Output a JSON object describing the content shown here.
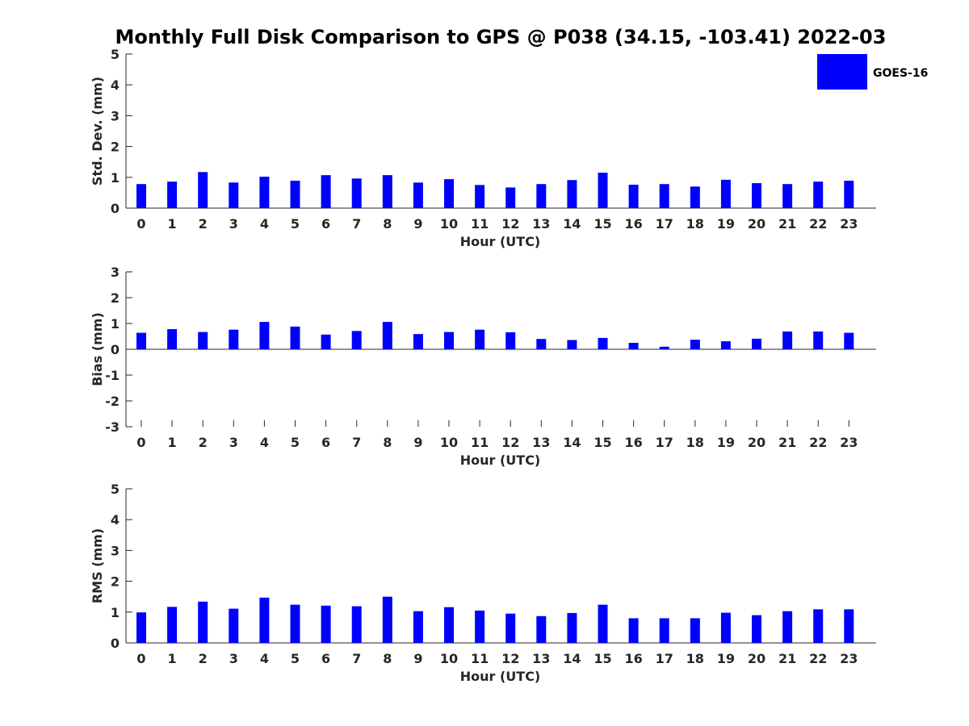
{
  "title": "Monthly Full Disk Comparison to GPS @ P038 (34.15, -103.41) 2022-03",
  "legend": {
    "label": "GOES-16",
    "color": "#0000ff"
  },
  "chart_data": [
    {
      "type": "bar",
      "xlabel": "Hour (UTC)",
      "ylabel": "Std. Dev. (mm)",
      "ylim": [
        0,
        5
      ],
      "yticks": [
        "0",
        "1",
        "2",
        "3",
        "4",
        "5"
      ],
      "categories": [
        "0",
        "1",
        "2",
        "3",
        "4",
        "5",
        "6",
        "7",
        "8",
        "9",
        "10",
        "11",
        "12",
        "13",
        "14",
        "15",
        "16",
        "17",
        "18",
        "19",
        "20",
        "21",
        "22",
        "23"
      ],
      "series": [
        {
          "name": "GOES-16",
          "color": "#0000ff",
          "values": [
            0.78,
            0.86,
            1.17,
            0.83,
            1.02,
            0.89,
            1.07,
            0.96,
            1.07,
            0.83,
            0.94,
            0.75,
            0.67,
            0.78,
            0.91,
            1.15,
            0.76,
            0.78,
            0.7,
            0.92,
            0.81,
            0.78,
            0.86,
            0.89
          ]
        }
      ]
    },
    {
      "type": "bar",
      "xlabel": "Hour (UTC)",
      "ylabel": "Bias (mm)",
      "ylim": [
        -3,
        3
      ],
      "yticks": [
        "-3",
        "-2",
        "-1",
        "0",
        "1",
        "2",
        "3"
      ],
      "categories": [
        "0",
        "1",
        "2",
        "3",
        "4",
        "5",
        "6",
        "7",
        "8",
        "9",
        "10",
        "11",
        "12",
        "13",
        "14",
        "15",
        "16",
        "17",
        "18",
        "19",
        "20",
        "21",
        "22",
        "23"
      ],
      "series": [
        {
          "name": "GOES-16",
          "color": "#0000ff",
          "values": [
            0.64,
            0.78,
            0.67,
            0.76,
            1.06,
            0.88,
            0.57,
            0.71,
            1.06,
            0.59,
            0.67,
            0.76,
            0.66,
            0.4,
            0.36,
            0.44,
            0.25,
            0.1,
            0.37,
            0.31,
            0.41,
            0.69,
            0.69,
            0.64
          ]
        }
      ]
    },
    {
      "type": "bar",
      "xlabel": "Hour (UTC)",
      "ylabel": "RMS (mm)",
      "ylim": [
        0,
        5
      ],
      "yticks": [
        "0",
        "1",
        "2",
        "3",
        "4",
        "5"
      ],
      "categories": [
        "0",
        "1",
        "2",
        "3",
        "4",
        "5",
        "6",
        "7",
        "8",
        "9",
        "10",
        "11",
        "12",
        "13",
        "14",
        "15",
        "16",
        "17",
        "18",
        "19",
        "20",
        "21",
        "22",
        "23"
      ],
      "series": [
        {
          "name": "GOES-16",
          "color": "#0000ff",
          "values": [
            0.99,
            1.17,
            1.34,
            1.11,
            1.47,
            1.24,
            1.21,
            1.19,
            1.5,
            1.03,
            1.16,
            1.05,
            0.95,
            0.87,
            0.97,
            1.24,
            0.8,
            0.8,
            0.8,
            0.98,
            0.9,
            1.03,
            1.09,
            1.09
          ]
        }
      ]
    }
  ]
}
